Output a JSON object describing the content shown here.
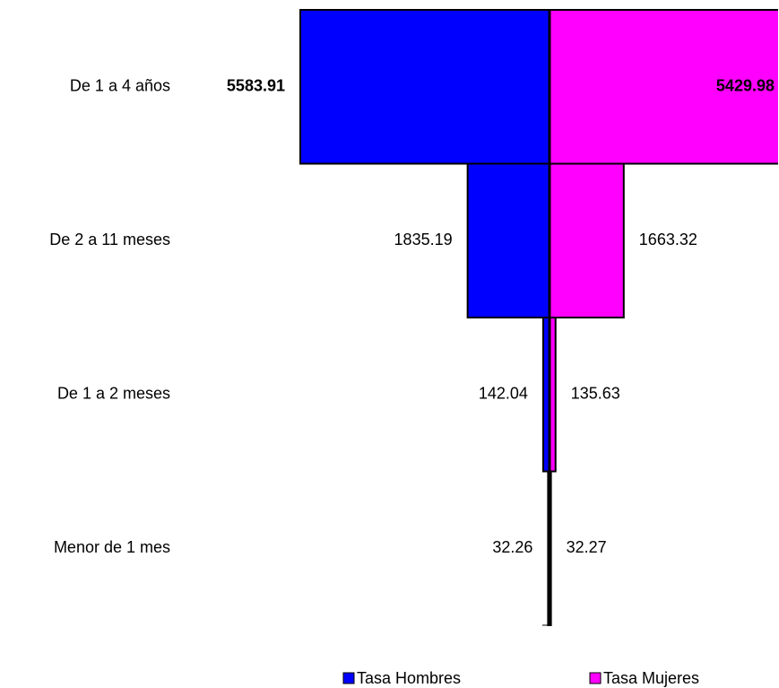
{
  "chart_data": {
    "type": "pyramid",
    "categories": [
      "De 1 a 4 años",
      "De 2 a 11 meses",
      "De 1 a 2 meses",
      "Menor de 1 mes"
    ],
    "series": [
      {
        "name": "Tasa Hombres",
        "color": "#0000ff",
        "values": [
          5583.91,
          1835.19,
          142.04,
          32.26
        ]
      },
      {
        "name": "Tasa Mujeres",
        "color": "#ff00ff",
        "values": [
          5429.98,
          1663.32,
          135.63,
          32.27
        ]
      }
    ]
  }
}
